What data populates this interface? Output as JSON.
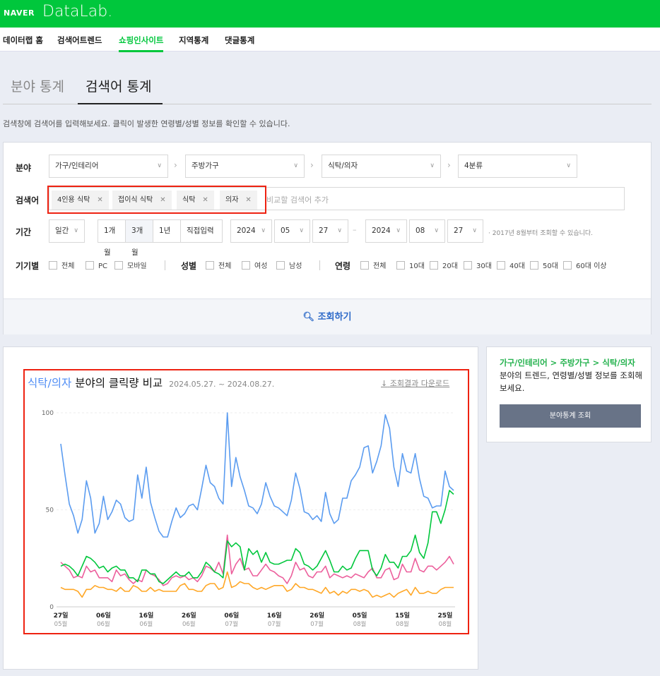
{
  "header": {
    "brand": "NAVER",
    "product": "DataLab."
  },
  "nav": [
    {
      "label": "데이터랩 홈"
    },
    {
      "label": "검색어트렌드"
    },
    {
      "label": "쇼핑인사이트",
      "active": true
    },
    {
      "label": "지역통계"
    },
    {
      "label": "댓글통계"
    }
  ],
  "tabs": [
    {
      "label": "분야 통계"
    },
    {
      "label": "검색어 통계",
      "active": true
    }
  ],
  "description": "검색창에 검색어를 입력해보세요. 클릭이 발생한 연령별/성별 정보를 확인할 수 있습니다.",
  "filter": {
    "category_label": "분야",
    "categories": [
      "가구/인테리어",
      "주방가구",
      "식탁/의자",
      "4분류"
    ],
    "keyword_label": "검색어",
    "keywords": [
      "4인용 식탁",
      "접이식 식탁",
      "식탁",
      "의자"
    ],
    "keyword_placeholder": "비교할 검색어 추가",
    "period_label": "기간",
    "period_unit": "일간",
    "period_buttons": [
      "1개월",
      "3개월",
      "1년",
      "직접입력"
    ],
    "period_selected": "3개월",
    "start": {
      "year": "2024",
      "month": "05",
      "day": "27"
    },
    "end": {
      "year": "2024",
      "month": "08",
      "day": "27"
    },
    "tilde": "–",
    "period_note": "· 2017년 8월부터 조회할 수 있습니다.",
    "device_label": "기기별",
    "devices": [
      "전체",
      "PC",
      "모바일"
    ],
    "gender_label": "성별",
    "genders": [
      "전체",
      "여성",
      "남성"
    ],
    "age_label": "연령",
    "ages": [
      "전체",
      "10대",
      "20대",
      "30대",
      "40대",
      "50대",
      "60대 이상"
    ],
    "search_button": "조회하기"
  },
  "result": {
    "title_category": "식탁/의자",
    "title_rest": "분야의 클릭량 비교",
    "date_range": "2024.05.27. ~ 2024.08.27.",
    "download": "조회결과 다운로드"
  },
  "side": {
    "path": "가구/인테리어 > 주방가구 > 식탁/의자",
    "text": " 분야의 트렌드, 연령별/성별 정보를 조회해보세요.",
    "button": "분야통계 조회"
  },
  "colors": {
    "brand": "#00c73c",
    "highlight": "#e21"
  },
  "chart_data": {
    "type": "line",
    "x_start": "2024-05-27",
    "x_end": "2024-08-27",
    "ylim": [
      0,
      100
    ],
    "yticks": [
      "0",
      "50",
      "100"
    ],
    "xticks": [
      {
        "day": "27일",
        "month": "05월"
      },
      {
        "day": "06일",
        "month": "06월"
      },
      {
        "day": "16일",
        "month": "06월"
      },
      {
        "day": "26일",
        "month": "06월"
      },
      {
        "day": "06일",
        "month": "07월"
      },
      {
        "day": "16일",
        "month": "07월"
      },
      {
        "day": "26일",
        "month": "07월"
      },
      {
        "day": "05일",
        "month": "08월"
      },
      {
        "day": "15일",
        "month": "08월"
      },
      {
        "day": "25일",
        "month": "08월"
      }
    ],
    "grid": true,
    "series": [
      {
        "color": "#5b9cf0",
        "values": [
          84,
          68,
          53,
          47,
          38,
          45,
          65,
          56,
          38,
          43,
          57,
          45,
          49,
          55,
          53,
          46,
          44,
          45,
          68,
          56,
          72,
          54,
          46,
          39,
          36,
          36,
          44,
          51,
          46,
          48,
          52,
          53,
          50,
          61,
          73,
          64,
          62,
          56,
          53,
          100,
          62,
          77,
          67,
          60,
          52,
          51,
          48,
          53,
          64,
          57,
          52,
          51,
          49,
          47,
          55,
          69,
          61,
          49,
          48,
          45,
          47,
          44,
          59,
          48,
          43,
          45,
          56,
          56,
          65,
          68,
          72,
          82,
          83,
          69,
          75,
          83,
          99,
          92,
          72,
          62,
          79,
          70,
          69,
          79,
          66,
          57,
          56,
          51,
          52,
          52,
          70,
          62,
          60
        ]
      },
      {
        "color": "#00c73c",
        "values": [
          21,
          22,
          21,
          19,
          16,
          21,
          26,
          25,
          23,
          20,
          21,
          18,
          20,
          21,
          19,
          19,
          15,
          15,
          13,
          19,
          19,
          17,
          17,
          13,
          12,
          14,
          16,
          18,
          16,
          16,
          18,
          15,
          15,
          18,
          23,
          21,
          18,
          17,
          15,
          34,
          31,
          33,
          31,
          19,
          30,
          27,
          29,
          23,
          28,
          23,
          22,
          22,
          23,
          24,
          24,
          30,
          28,
          22,
          21,
          19,
          21,
          25,
          29,
          24,
          18,
          18,
          21,
          19,
          20,
          25,
          29,
          29,
          29,
          19,
          16,
          20,
          27,
          23,
          23,
          20,
          26,
          26,
          29,
          37,
          28,
          25,
          33,
          49,
          49,
          43,
          50,
          60,
          58
        ]
      },
      {
        "color": "#ec5f9c",
        "values": [
          23,
          21,
          19,
          15,
          16,
          15,
          21,
          18,
          19,
          15,
          15,
          15,
          13,
          19,
          16,
          17,
          14,
          12,
          14,
          13,
          19,
          17,
          16,
          14,
          11,
          12,
          15,
          16,
          15,
          16,
          14,
          15,
          13,
          16,
          21,
          20,
          18,
          23,
          17,
          37,
          17,
          22,
          25,
          19,
          20,
          16,
          16,
          19,
          22,
          19,
          18,
          16,
          15,
          12,
          16,
          23,
          19,
          20,
          16,
          15,
          18,
          18,
          21,
          15,
          17,
          16,
          15,
          16,
          15,
          17,
          16,
          15,
          18,
          20,
          15,
          15,
          19,
          20,
          14,
          15,
          22,
          18,
          18,
          25,
          19,
          18,
          21,
          21,
          19,
          21,
          23,
          26,
          22
        ]
      },
      {
        "color": "#ffa726",
        "values": [
          10,
          9,
          9,
          9,
          8,
          5,
          9,
          9,
          11,
          10,
          10,
          9,
          9,
          8,
          10,
          8,
          8,
          11,
          10,
          8,
          8,
          10,
          8,
          9,
          8,
          8,
          8,
          8,
          11,
          12,
          9,
          9,
          8,
          8,
          11,
          12,
          12,
          9,
          10,
          18,
          10,
          11,
          13,
          12,
          12,
          10,
          9,
          10,
          9,
          10,
          11,
          11,
          11,
          8,
          9,
          12,
          10,
          10,
          9,
          9,
          8,
          7,
          10,
          7,
          8,
          6,
          8,
          7,
          9,
          9,
          8,
          9,
          8,
          5,
          6,
          5,
          6,
          7,
          5,
          7,
          8,
          9,
          6,
          10,
          7,
          7,
          8,
          7,
          7,
          9,
          10,
          10,
          10
        ]
      }
    ]
  }
}
